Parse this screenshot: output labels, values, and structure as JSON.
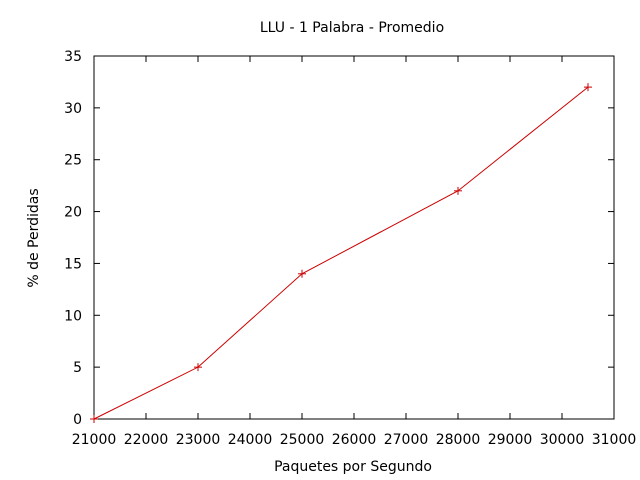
{
  "chart_data": {
    "type": "line",
    "title": "LLU - 1 Palabra - Promedio",
    "xlabel": "Paquetes por Segundo",
    "ylabel": "% de Perdidas",
    "xlim": [
      21000,
      31000
    ],
    "ylim": [
      0,
      35
    ],
    "xticks": [
      21000,
      22000,
      23000,
      24000,
      25000,
      26000,
      27000,
      28000,
      29000,
      30000,
      31000
    ],
    "yticks": [
      0,
      5,
      10,
      15,
      20,
      25,
      30,
      35
    ],
    "grid": false,
    "legend": "none",
    "series": [
      {
        "color": "#cc0000",
        "marker": "plus",
        "x": [
          21000,
          23000,
          25000,
          28000,
          30500
        ],
        "y": [
          0,
          5,
          14,
          22,
          32
        ]
      }
    ]
  }
}
